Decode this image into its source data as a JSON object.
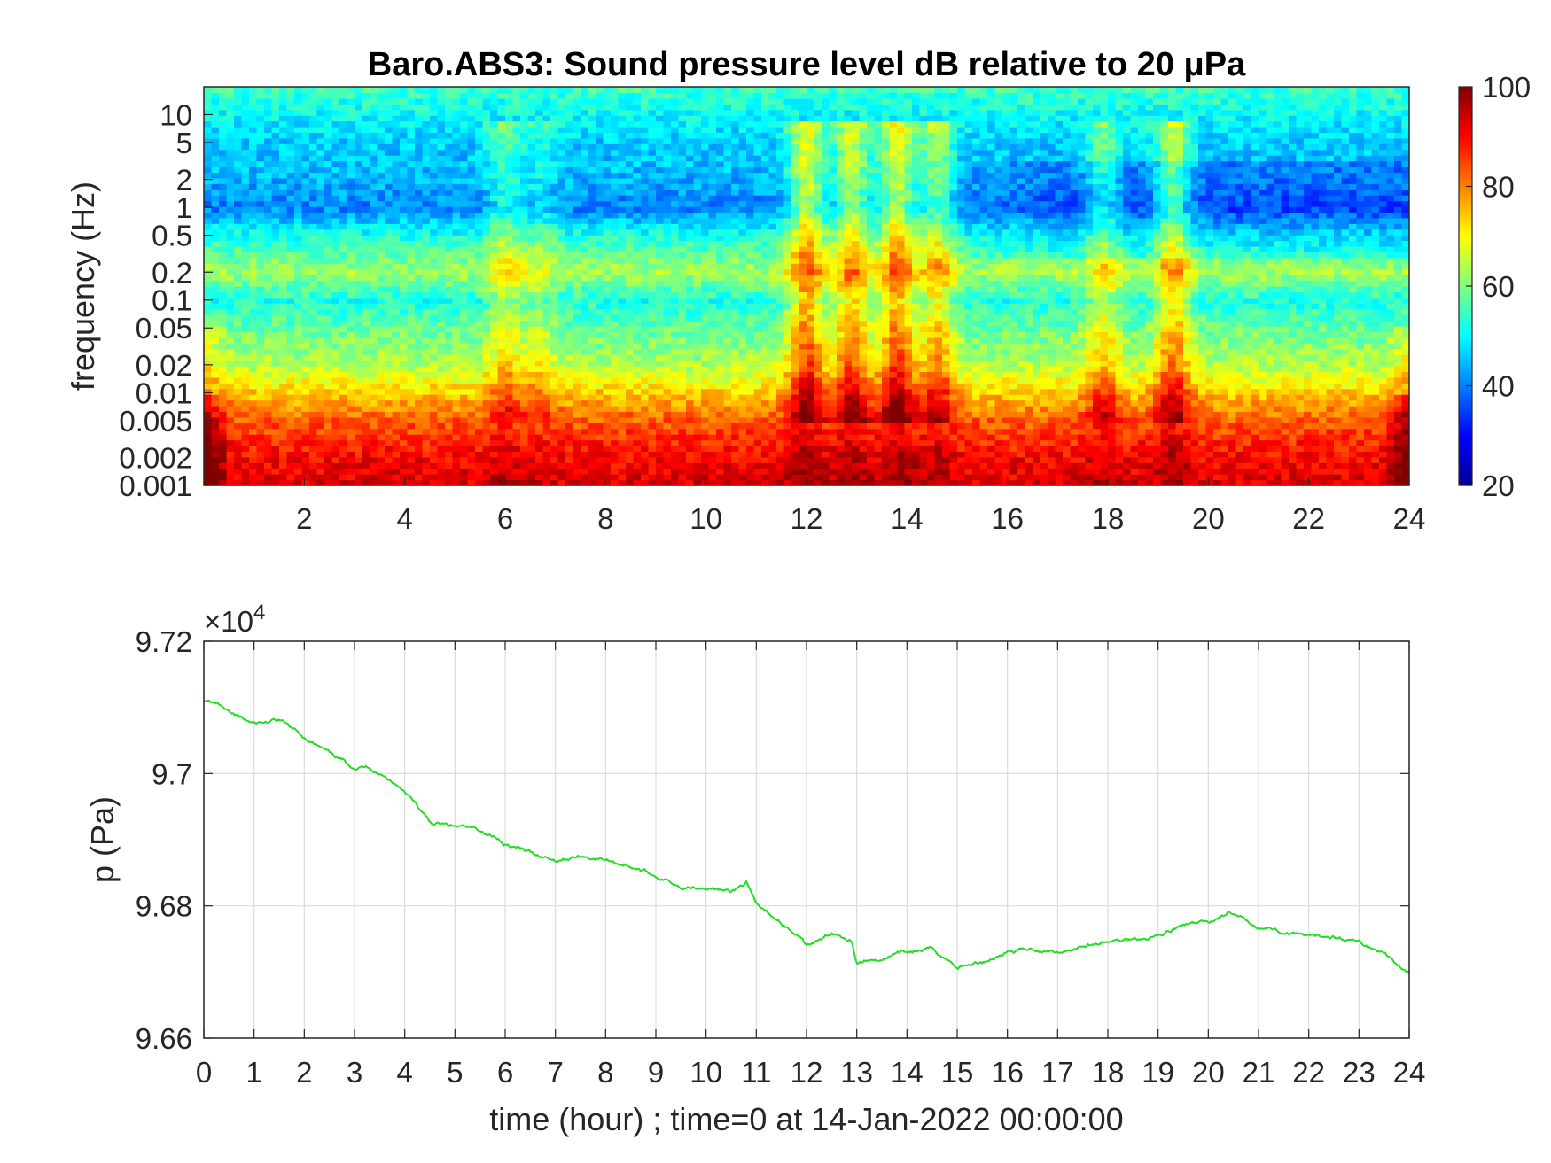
{
  "chart_data": [
    {
      "type": "heatmap",
      "title": "Baro.ABS3: Sound pressure level dB relative to 20 μPa",
      "xlabel": "",
      "ylabel": "frequency (Hz)",
      "x_tick_labels": [
        "2",
        "4",
        "6",
        "8",
        "10",
        "12",
        "14",
        "16",
        "18",
        "20",
        "22",
        "24"
      ],
      "x_ticks": [
        2,
        4,
        6,
        8,
        10,
        12,
        14,
        16,
        18,
        20,
        22,
        24
      ],
      "xlim": [
        0,
        24
      ],
      "y_scale": "log",
      "y_tick_labels": [
        "10",
        "5",
        "2",
        "1",
        "0.5",
        "0.2",
        "0.1",
        "0.05",
        "0.02",
        "0.01",
        "0.005",
        "0.002",
        "0.001"
      ],
      "y_ticks": [
        10,
        5,
        2,
        1,
        0.5,
        0.2,
        0.1,
        0.05,
        0.02,
        0.01,
        0.005,
        0.002,
        0.001
      ],
      "ylim": [
        0.001,
        20
      ],
      "colorbar": {
        "colormap": "jet",
        "range": [
          20,
          100
        ],
        "tick_labels": [
          "20",
          "40",
          "60",
          "80",
          "100"
        ],
        "ticks": [
          20,
          40,
          60,
          80,
          100
        ]
      },
      "level_profile": {
        "freq_hz": [
          0.001,
          0.002,
          0.005,
          0.01,
          0.02,
          0.05,
          0.1,
          0.2,
          0.5,
          1,
          2,
          5,
          10,
          20
        ],
        "db": [
          93,
          90,
          83,
          74,
          64,
          58,
          52,
          63,
          52,
          40,
          44,
          46,
          50,
          55
        ]
      },
      "bursts": [
        {
          "t": 6.0,
          "level_db": 10
        },
        {
          "t": 6.7,
          "level_db": 6
        },
        {
          "t": 12.0,
          "level_db": 22
        },
        {
          "t": 12.9,
          "level_db": 20
        },
        {
          "t": 13.8,
          "level_db": 22
        },
        {
          "t": 14.6,
          "level_db": 16
        },
        {
          "t": 17.9,
          "level_db": 12
        },
        {
          "t": 19.3,
          "level_db": 18
        }
      ]
    },
    {
      "type": "line",
      "title": "",
      "xlabel": "time (hour) ; time=0 at 14-Jan-2022 00:00:00",
      "ylabel": "p (Pa)",
      "exponent_label": "×10",
      "exponent_power": "4",
      "xlim": [
        0,
        24
      ],
      "ylim": [
        96600,
        97200
      ],
      "x_tick_labels": [
        "0",
        "1",
        "2",
        "3",
        "4",
        "5",
        "6",
        "7",
        "8",
        "9",
        "10",
        "11",
        "12",
        "13",
        "14",
        "15",
        "16",
        "17",
        "18",
        "19",
        "20",
        "21",
        "22",
        "23",
        "24"
      ],
      "y_tick_labels": [
        "9.72",
        "9.7",
        "9.68",
        "9.66"
      ],
      "y_ticks": [
        97200,
        97000,
        96800,
        96600
      ],
      "grid": true,
      "line_color": "#22dd22",
      "series": [
        {
          "x": [
            0,
            0.3,
            0.5,
            1.0,
            1.5,
            2.0,
            2.5,
            3.0,
            3.3,
            3.5,
            4.0,
            4.5,
            5.0,
            5.5,
            6.0,
            6.5,
            7.0,
            7.5,
            8.0,
            8.5,
            9.0,
            9.5,
            10.0,
            10.5,
            10.8,
            11.0,
            11.5,
            12.0,
            12.3,
            12.5,
            12.9,
            13.0,
            13.5,
            14.0,
            14.5,
            15.0,
            15.5,
            16.0,
            16.5,
            17.0,
            17.5,
            18.0,
            18.5,
            19.0,
            19.5,
            20.0,
            20.4,
            20.8,
            21.0,
            21.5,
            22.0,
            22.5,
            23.0,
            23.5,
            24.0
          ],
          "y": [
            97110,
            97105,
            97090,
            97075,
            97080,
            97055,
            97030,
            97010,
            97010,
            97000,
            96975,
            96925,
            96920,
            96915,
            96895,
            96880,
            96870,
            96875,
            96870,
            96860,
            96845,
            96830,
            96830,
            96820,
            96835,
            96800,
            96775,
            96740,
            96748,
            96760,
            96750,
            96715,
            96720,
            96730,
            96735,
            96708,
            96715,
            96730,
            96735,
            96730,
            96740,
            96745,
            96750,
            96755,
            96770,
            96775,
            96790,
            96775,
            96770,
            96760,
            96752,
            96755,
            96745,
            96728,
            96700
          ]
        }
      ]
    }
  ]
}
